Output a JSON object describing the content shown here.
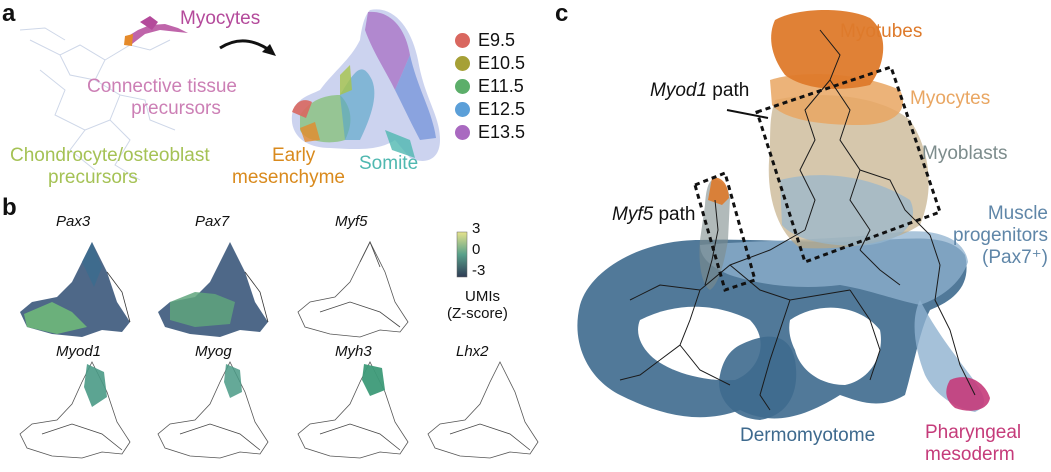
{
  "panel_a": {
    "letter": "a",
    "labels": {
      "myocytes": "Myocytes",
      "connective_line1": "Connective tissue",
      "connective_line2": "precursors",
      "chondro_line1": "Chondrocyte/osteoblast",
      "chondro_line2": "precursors",
      "early_line1": "Early",
      "early_line2": "mesenchyme",
      "somite": "Somite"
    },
    "legend": [
      {
        "label": "E9.5",
        "color": "#d9675f"
      },
      {
        "label": "E10.5",
        "color": "#a6a036"
      },
      {
        "label": "E11.5",
        "color": "#5cae6a"
      },
      {
        "label": "E12.5",
        "color": "#5b9fd8"
      },
      {
        "label": "E13.5",
        "color": "#a969c0"
      }
    ],
    "colors": {
      "myocytes": "#b44a9b",
      "connective": "#cc7fb5",
      "chondro": "#a5c255",
      "early": "#d98a1d",
      "somite": "#4fb8b0"
    }
  },
  "panel_b": {
    "letter": "b",
    "genes_row1": [
      "Pax3",
      "Pax7",
      "Myf5"
    ],
    "genes_row2": [
      "Myod1",
      "Myog",
      "Myh3",
      "Lhx2"
    ],
    "colorbar_ticks": [
      "3",
      "0",
      "-3"
    ],
    "colorbar_label_line1": "UMIs",
    "colorbar_label_line2": "(Z-score)"
  },
  "panel_c": {
    "letter": "c",
    "myod1_gene": "Myod1",
    "myod1_suffix": " path",
    "myf5_gene": "Myf5",
    "myf5_suffix": " path",
    "labels": {
      "myotubes": "Myotubes",
      "myocytes": "Myocytes",
      "myoblasts": "Myoblasts",
      "muscle_line1": "Muscle",
      "muscle_line2": "progenitors",
      "muscle_line3": "(Pax7⁺)",
      "pharyngeal_line1": "Pharyngeal",
      "pharyngeal_line2": "mesoderm",
      "dermomyotome": "Dermomyotome"
    },
    "colors": {
      "myotubes": "#de7a2b",
      "myocytes": "#e9a662",
      "myoblasts": "#7d8c8c",
      "muscle": "#5f86a8",
      "pharyngeal": "#c53b7a",
      "dermomyotome": "#3e6a8e"
    }
  }
}
